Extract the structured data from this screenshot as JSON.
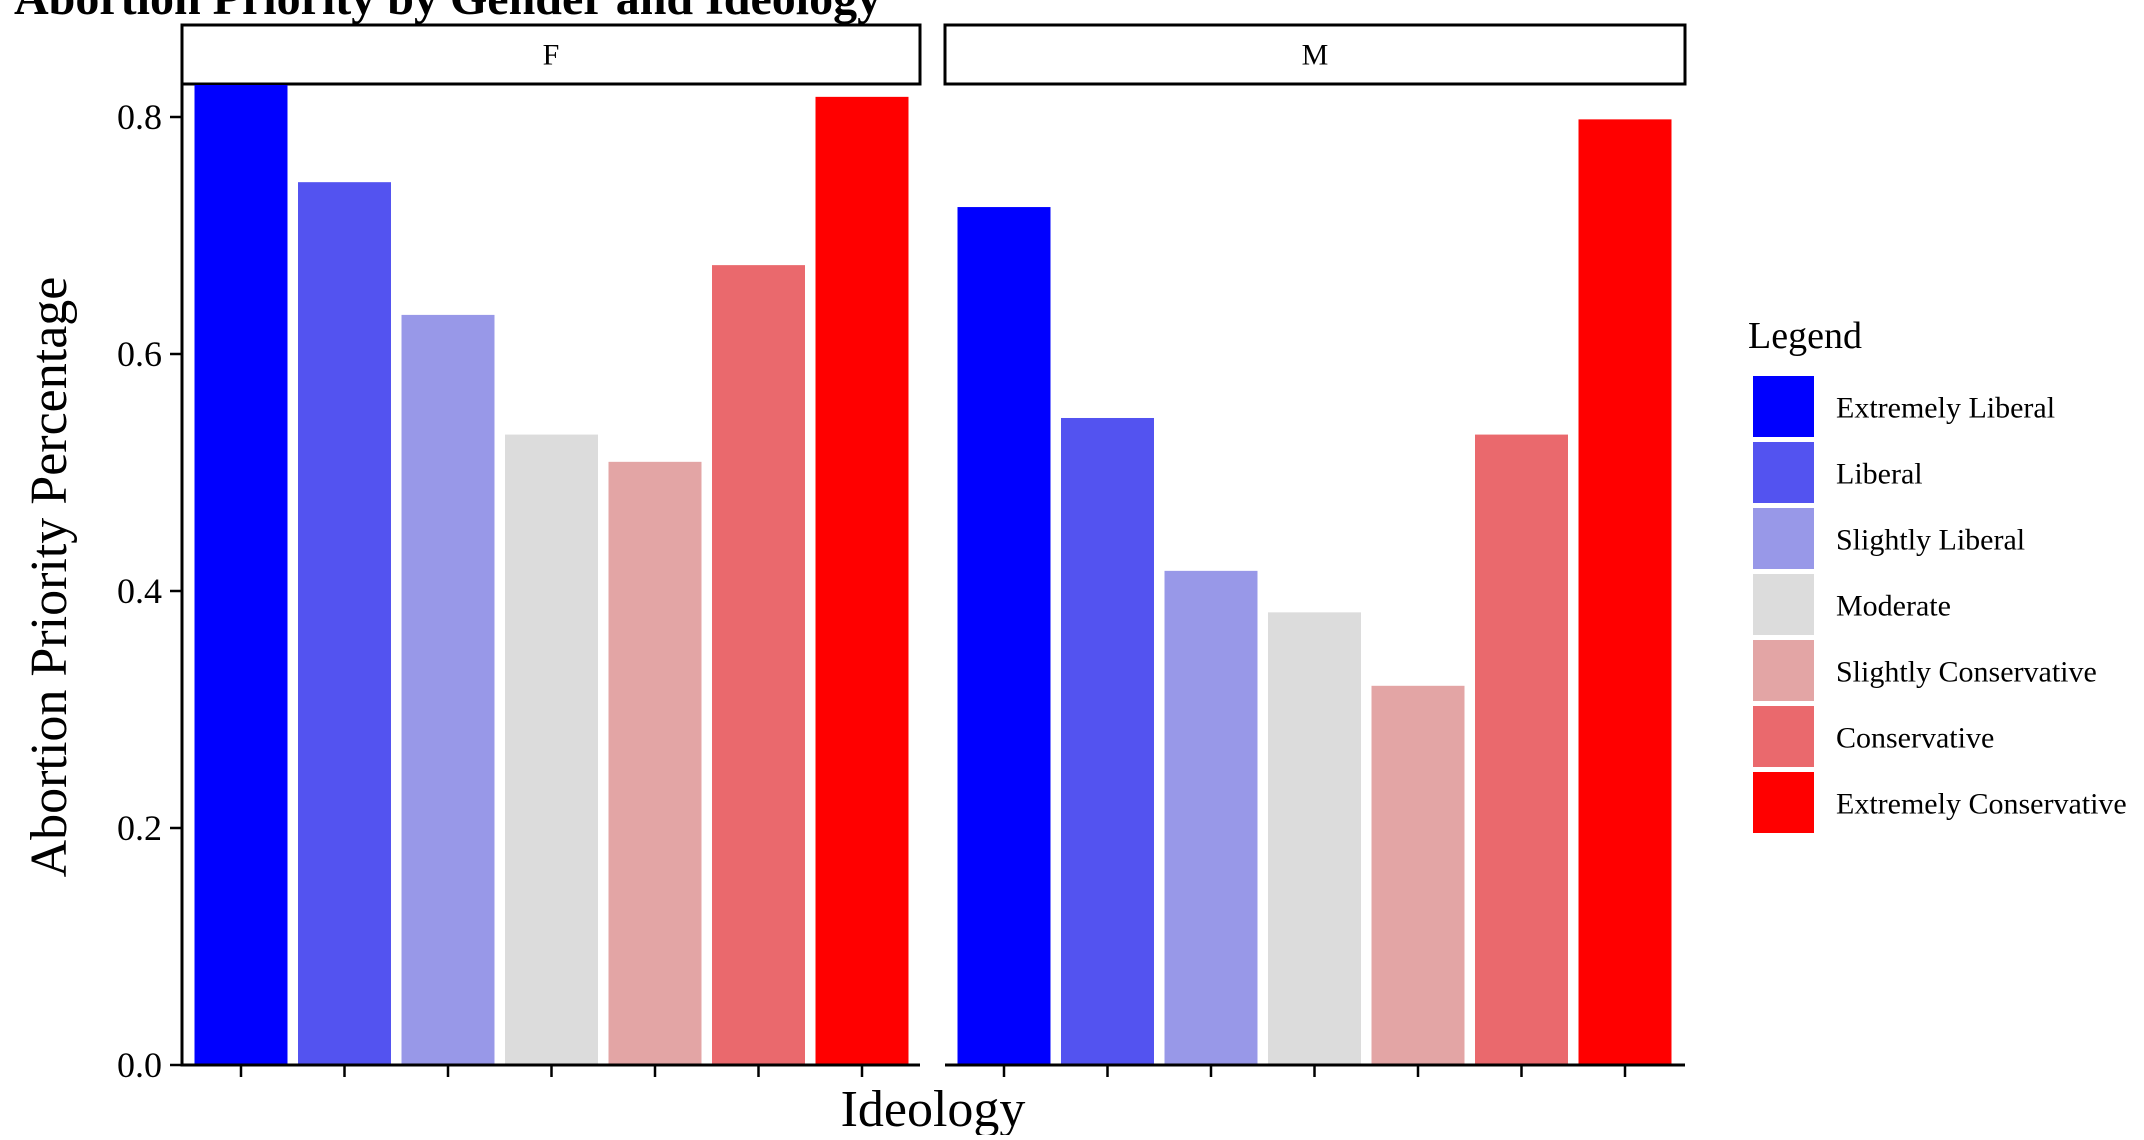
{
  "chart_data": {
    "type": "bar",
    "title": "Abortion Priority by Gender and Ideology",
    "xlabel": "Ideology",
    "ylabel": "Abortion Priority Percentage",
    "ylim": [
      0,
      0.83
    ],
    "yticks": [
      "0.0",
      "0.2",
      "0.4",
      "0.6",
      "0.8"
    ],
    "grid": false,
    "legend": {
      "title": "Legend",
      "position": "right"
    },
    "categories": [
      "Extremely Liberal",
      "Liberal",
      "Slightly Liberal",
      "Moderate",
      "Slightly Conservative",
      "Conservative",
      "Extremely Conservative"
    ],
    "colors": [
      "#0000FF",
      "#5353F0",
      "#9898E8",
      "#DCDCDC",
      "#E3A5A5",
      "#EA696D",
      "#FF0000"
    ],
    "facets": [
      {
        "name": "F",
        "values": [
          0.83,
          0.745,
          0.633,
          0.532,
          0.509,
          0.675,
          0.817
        ]
      },
      {
        "name": "M",
        "values": [
          0.724,
          0.546,
          0.417,
          0.382,
          0.32,
          0.532,
          0.798
        ]
      }
    ]
  }
}
